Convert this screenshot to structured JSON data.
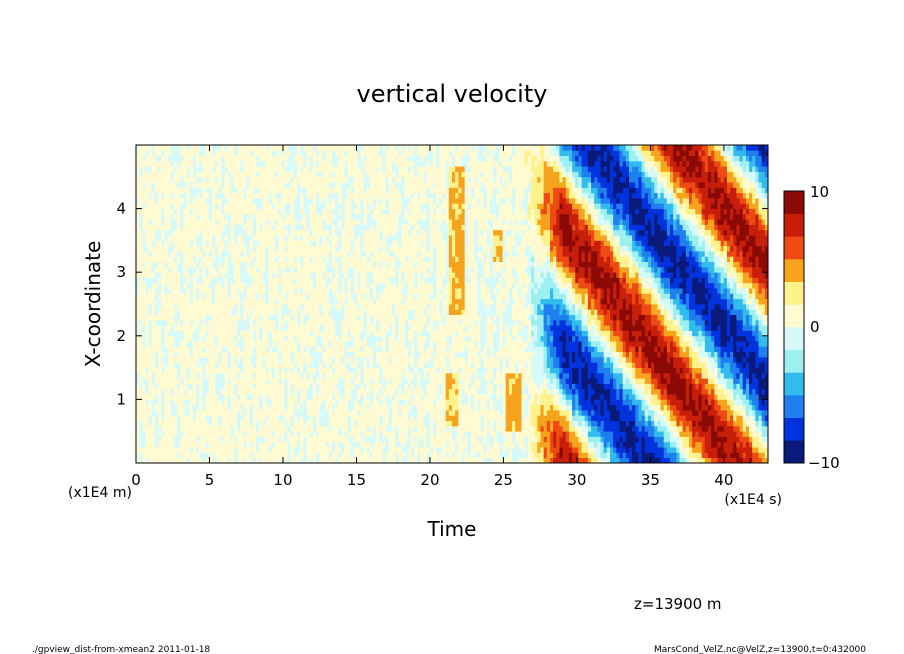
{
  "chart_data": {
    "type": "heatmap",
    "title": "vertical velocity",
    "xlabel": "Time",
    "ylabel": "X-coordinate",
    "xlim": [
      0,
      43
    ],
    "ylim": [
      0,
      5
    ],
    "x_ticks": [
      0,
      5,
      10,
      15,
      20,
      25,
      30,
      35,
      40
    ],
    "y_ticks": [
      1,
      2,
      3,
      4
    ],
    "x_scale_label": "(x1E4 s)",
    "y_scale_label": "(x1E4 m)",
    "colorbar": {
      "min": -10,
      "max": 10,
      "tick_labels": [
        "10",
        "0",
        "−10"
      ],
      "colors": [
        "#0a1a7a",
        "#0033dd",
        "#1f7fee",
        "#33bbee",
        "#9ef0f0",
        "#d6fafa",
        "#fffad2",
        "#fff28a",
        "#f6a41e",
        "#ee4a14",
        "#c81f0a",
        "#8c0a06"
      ]
    },
    "annotation": "z=13900 m"
  },
  "footer": {
    "left": "./gpview_dist-from-xmean2  2011-01-18",
    "right": "MarsCond_VelZ.nc@VelZ,z=13900,t=0:432000"
  }
}
